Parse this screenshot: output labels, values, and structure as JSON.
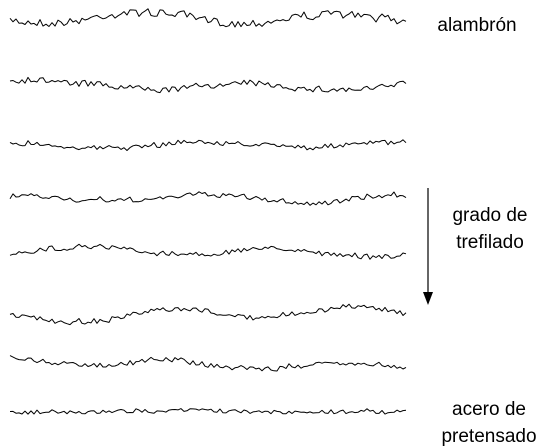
{
  "labels": {
    "top": "alambrón",
    "middle": [
      "grado de",
      "trefilado"
    ],
    "bottom": [
      "acero de",
      "pretensado"
    ]
  }
}
